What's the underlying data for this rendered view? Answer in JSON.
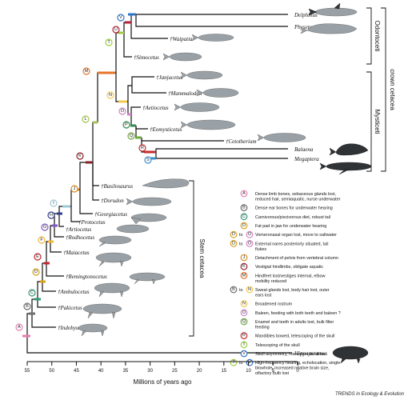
{
  "axis": {
    "title": "Millions of years ago",
    "ticks": [
      "55",
      "50",
      "45",
      "40",
      "35",
      "30",
      "25",
      "20",
      "15",
      "10",
      "5",
      "0"
    ]
  },
  "taxa": [
    {
      "name": "Delphinus"
    },
    {
      "name": "Physeter"
    },
    {
      "name": "†Waipatia"
    },
    {
      "name": "†Simocetus"
    },
    {
      "name": "†Janjucetus"
    },
    {
      "name": "†Mammalodon"
    },
    {
      "name": "†Aetiocetus"
    },
    {
      "name": "†Eomysticetus"
    },
    {
      "name": "†Cetotherium"
    },
    {
      "name": "Balaena"
    },
    {
      "name": "Megaptera"
    },
    {
      "name": "†Basilosaurus"
    },
    {
      "name": "†Dorudon"
    },
    {
      "name": "†Georgiacetus"
    },
    {
      "name": "†Protocetus"
    },
    {
      "name": "†Artiocetus"
    },
    {
      "name": "†Rodhocetus"
    },
    {
      "name": "†Maiacetus"
    },
    {
      "name": "†Remingtonocetus"
    },
    {
      "name": "†Ambulocetus"
    },
    {
      "name": "†Pakicetus"
    },
    {
      "name": "†Indohyus"
    },
    {
      "name": "Hippopotamus"
    }
  ],
  "groups": {
    "odontoceti": "Odontoceti",
    "mysticeti": "Mysticeti",
    "crown": "crown cetacea",
    "stem": "Stem cetacea"
  },
  "node_colors": {
    "A": "#e47fb1",
    "B": "#6d6e71",
    "C": "#2e9c7a",
    "D": "#d9a21b",
    "E": "#c0262d",
    "F": "#f2b63a",
    "G": "#7e57c2",
    "H": "#2f3f8f",
    "I": "#9ec9d6",
    "J": "#d98b1e",
    "K": "#8b1d26",
    "L": "#9fc54a",
    "M": "#e4752b",
    "N": "#f2c94c",
    "O": "#d184c4",
    "P": "#2e8b4a",
    "Q": "#6fa83f",
    "R": "#c42f2f",
    "S": "#3d8fd0",
    "T": "#9ccd3c",
    "U": "#b5213b",
    "V": "#2f73c6"
  },
  "legend": [
    {
      "letter": "A",
      "text": "Dense limb bones, sebaceous glands lost, reduced hair, semiaquatic, nurse underwater"
    },
    {
      "letter": "B",
      "text": "Dense ear bones for underwater hearing"
    },
    {
      "letter": "C",
      "text": "Carnivorous/piscivorous diet, robust tail"
    },
    {
      "letter": "D",
      "text": "Fat pad in jaw for underwater hearing"
    },
    {
      "letter": "D",
      "to": "O",
      "join": "to",
      "text": "Vomeronasal organ lost, move to saltwater"
    },
    {
      "letter": "D",
      "to": "O",
      "join": "to",
      "text": "External nares posteriorly situated, tail flukes"
    },
    {
      "letter": "J",
      "text": "Detachment of pelvis from vertebral column"
    },
    {
      "letter": "K",
      "text": "Vestigial hindlimbs, obligate aquatic"
    },
    {
      "letter": "M",
      "text": "Hindfeet lost/vestiges internal, elbow mobility reduced"
    },
    {
      "letter": "B",
      "to": "N",
      "join": "to",
      "text": "Sweat glands lost, body hair lost, outer ears lost"
    },
    {
      "letter": "N",
      "text": "Broadened rostrum"
    },
    {
      "letter": "O",
      "text": "Baleen, feeding with both teeth and baleen ?"
    },
    {
      "letter": "Q",
      "text": "Enamel and teeth in adults lost, bulk filter feeding"
    },
    {
      "letter": "R",
      "text": "Mandibles bowed, telescoping of the skull"
    },
    {
      "letter": "T",
      "text": "Telescoping of the skull"
    },
    {
      "letter": "V",
      "text": "Skull asymmetry, homodont dentition"
    },
    {
      "letter": "T",
      "to": "V",
      "join": "to",
      "text": "High-frequency hearing, echolocation, single blowhole, increased relative brain size, olfactory bulb lost"
    }
  ],
  "credit": "TRENDS in Ecology & Evolution"
}
